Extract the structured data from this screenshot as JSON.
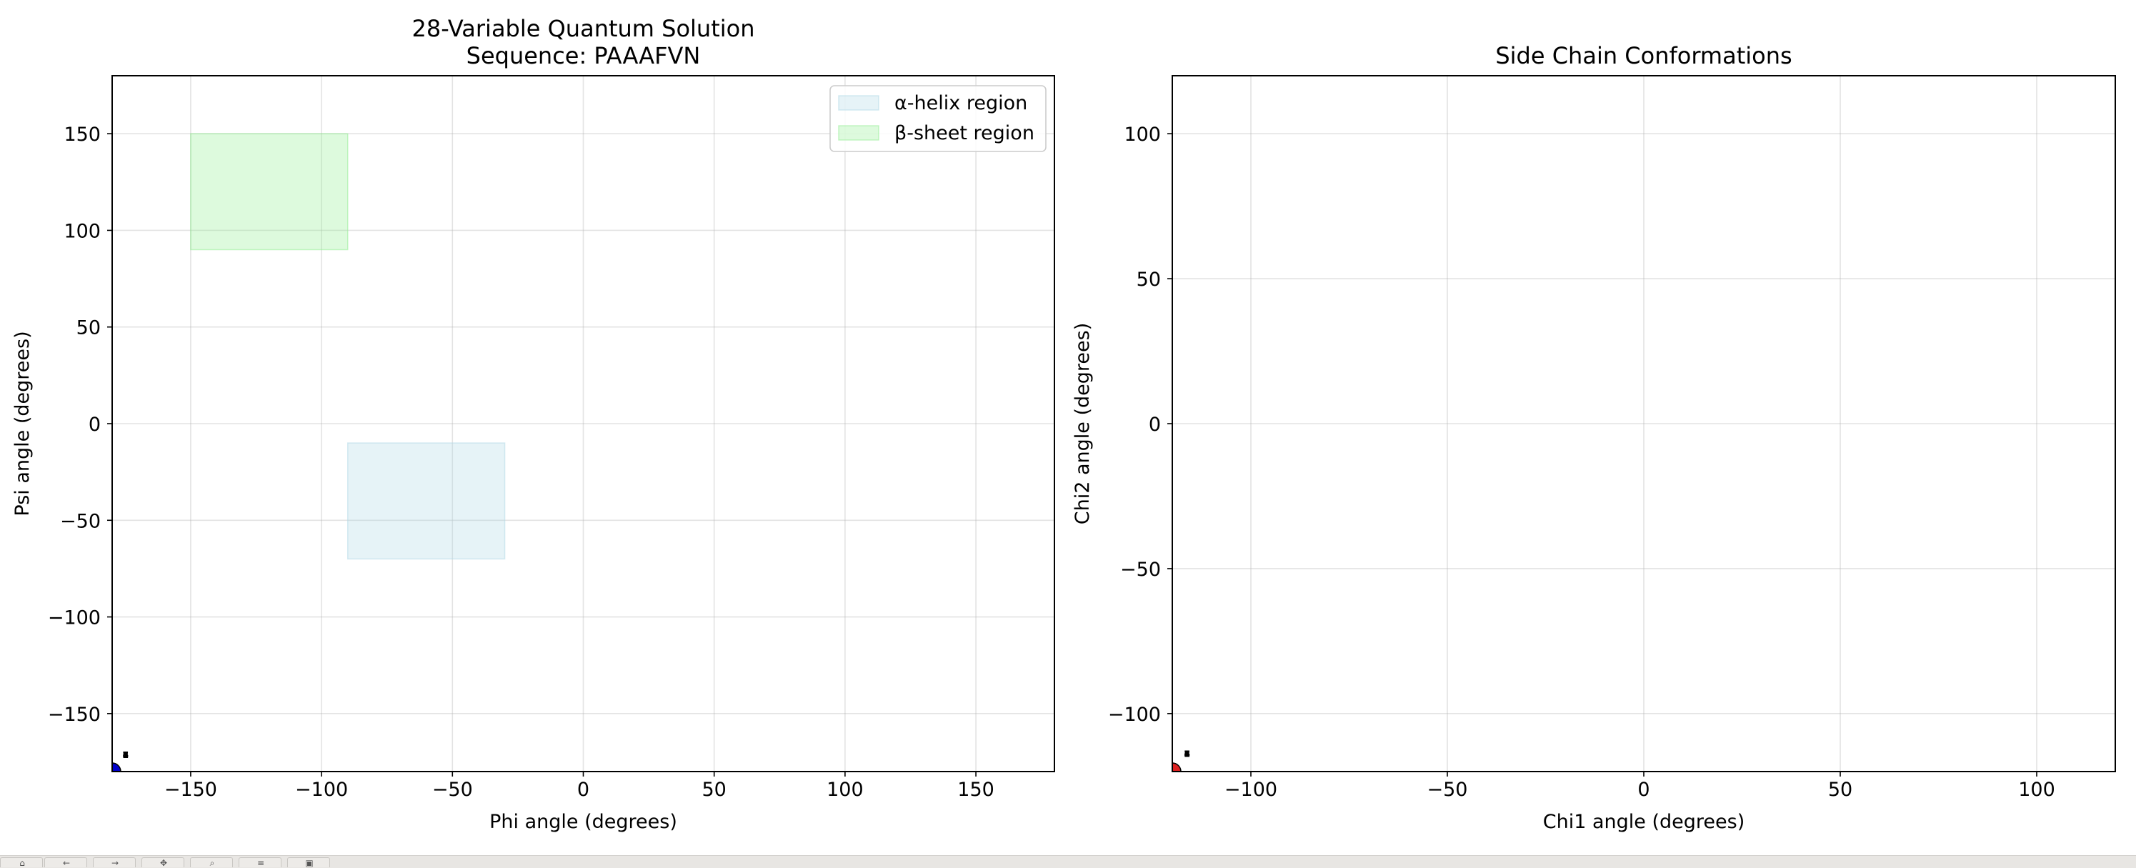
{
  "chart_data": [
    {
      "type": "scatter",
      "title": "28-Variable Quantum Solution\nSequence: PAAAFVN",
      "xlabel": "Phi angle (degrees)",
      "ylabel": "Psi angle (degrees)",
      "xlim": [
        -180,
        180
      ],
      "ylim": [
        -180,
        180
      ],
      "xticks": [
        -150,
        -100,
        -50,
        0,
        50,
        100,
        150
      ],
      "yticks": [
        -150,
        -100,
        -50,
        0,
        50,
        100,
        150
      ],
      "grid": true,
      "legend_position": "top-right",
      "regions": [
        {
          "name": "α-helix region",
          "x": [
            -90,
            -30
          ],
          "y": [
            -70,
            -10
          ],
          "color": "#add8e6",
          "alpha": 0.3
        },
        {
          "name": "β-sheet region",
          "x": [
            -150,
            -90
          ],
          "y": [
            90,
            150
          ],
          "color": "#90ee90",
          "alpha": 0.3
        }
      ],
      "points": [
        {
          "x": -180,
          "y": -180,
          "color": "#0000cc"
        }
      ],
      "annotations": [
        {
          "x": -176,
          "y": -173,
          "text": "7"
        },
        {
          "x": -176,
          "y": -173,
          "text": "6"
        },
        {
          "x": -176,
          "y": -173,
          "text": "5"
        },
        {
          "x": -176,
          "y": -173,
          "text": "4"
        },
        {
          "x": -176,
          "y": -173,
          "text": "3"
        },
        {
          "x": -176,
          "y": -173,
          "text": "2"
        },
        {
          "x": -176,
          "y": -173,
          "text": "1"
        }
      ]
    },
    {
      "type": "scatter",
      "title": "Side Chain Conformations",
      "xlabel": "Chi1 angle (degrees)",
      "ylabel": "Chi2 angle (degrees)",
      "xlim": [
        -120,
        120
      ],
      "ylim": [
        -120,
        120
      ],
      "xticks": [
        -100,
        -50,
        0,
        50,
        100
      ],
      "yticks": [
        -100,
        -50,
        0,
        50,
        100
      ],
      "grid": true,
      "points": [
        {
          "x": -120,
          "y": -120,
          "color": "#dd2222"
        }
      ],
      "annotations": [
        {
          "x": -117,
          "y": -115,
          "text": "7"
        },
        {
          "x": -117,
          "y": -115,
          "text": "6"
        },
        {
          "x": -117,
          "y": -115,
          "text": "5"
        },
        {
          "x": -117,
          "y": -115,
          "text": "4"
        },
        {
          "x": -117,
          "y": -115,
          "text": "3"
        },
        {
          "x": -117,
          "y": -115,
          "text": "2"
        },
        {
          "x": -117,
          "y": -115,
          "text": "1"
        }
      ]
    }
  ],
  "toolbar": {
    "buttons": [
      {
        "icon": "home-icon",
        "glyph": "⌂"
      },
      {
        "icon": "back-icon",
        "glyph": "←"
      },
      {
        "icon": "forward-icon",
        "glyph": "→"
      },
      {
        "icon": "pan-icon",
        "glyph": "✥"
      },
      {
        "icon": "zoom-icon",
        "glyph": "⌕"
      },
      {
        "icon": "configure-subplots-icon",
        "glyph": "≡"
      },
      {
        "icon": "save-icon",
        "glyph": "▣"
      }
    ]
  }
}
